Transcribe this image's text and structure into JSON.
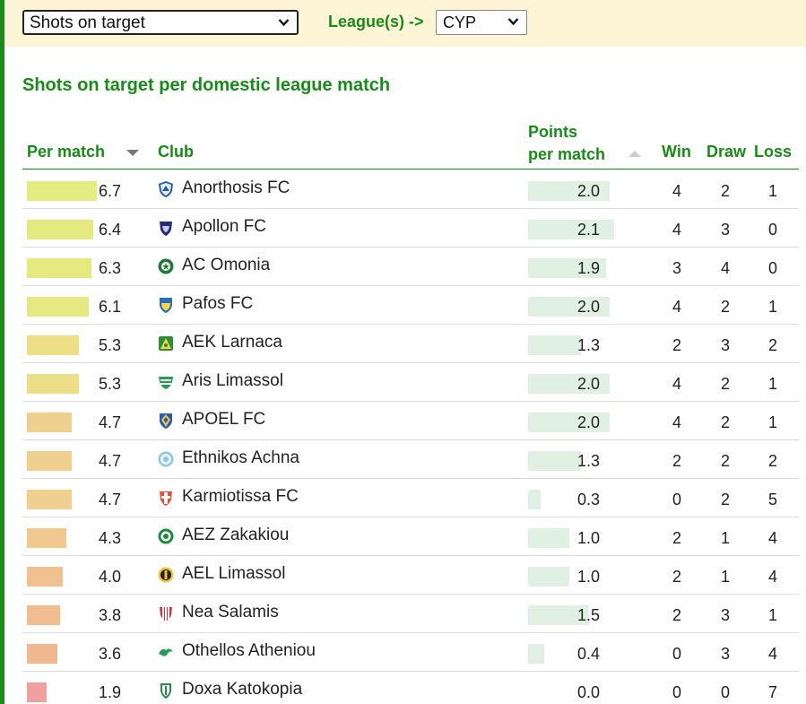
{
  "controls": {
    "stat_select_value": "Shots on target",
    "league_label": "League(s) ->",
    "league_select_value": "CYP"
  },
  "page_title": "Shots on target per domestic league match",
  "columns": {
    "per_match": "Per match",
    "club": "Club",
    "ppm_line1": "Points",
    "ppm_line2": "per match",
    "win": "Win",
    "draw": "Draw",
    "loss": "Loss"
  },
  "colors": {
    "accent_green": "#1a8a1a",
    "topbar_bg": "#fdf5d5",
    "ppm_bar": "#e0f0e2"
  },
  "rows": [
    {
      "per_match": "6.7",
      "club": "Anorthosis FC",
      "ppm": "2.0",
      "win": "4",
      "draw": "2",
      "loss": "1",
      "icon": "anorthosis-crest-icon",
      "pm_color": "#e2ec80"
    },
    {
      "per_match": "6.4",
      "club": "Apollon FC",
      "ppm": "2.1",
      "win": "4",
      "draw": "3",
      "loss": "0",
      "icon": "apollon-crest-icon",
      "pm_color": "#e4ea80"
    },
    {
      "per_match": "6.3",
      "club": "AC Omonia",
      "ppm": "1.9",
      "win": "3",
      "draw": "4",
      "loss": "0",
      "icon": "omonia-crest-icon",
      "pm_color": "#e4ea80"
    },
    {
      "per_match": "6.1",
      "club": "Pafos FC",
      "ppm": "2.0",
      "win": "4",
      "draw": "2",
      "loss": "1",
      "icon": "pafos-crest-icon",
      "pm_color": "#e6e882"
    },
    {
      "per_match": "5.3",
      "club": "AEK Larnaca",
      "ppm": "1.3",
      "win": "2",
      "draw": "3",
      "loss": "2",
      "icon": "aek-larnaca-crest-icon",
      "pm_color": "#ecdf88"
    },
    {
      "per_match": "5.3",
      "club": "Aris Limassol",
      "ppm": "2.0",
      "win": "4",
      "draw": "2",
      "loss": "1",
      "icon": "aris-limassol-crest-icon",
      "pm_color": "#ecdf88"
    },
    {
      "per_match": "4.7",
      "club": "APOEL FC",
      "ppm": "2.0",
      "win": "4",
      "draw": "2",
      "loss": "1",
      "icon": "apoel-crest-icon",
      "pm_color": "#efd090"
    },
    {
      "per_match": "4.7",
      "club": "Ethnikos Achna",
      "ppm": "1.3",
      "win": "2",
      "draw": "2",
      "loss": "2",
      "icon": "ethnikos-achna-crest-icon",
      "pm_color": "#efd090"
    },
    {
      "per_match": "4.7",
      "club": "Karmiotissa FC",
      "ppm": "0.3",
      "win": "0",
      "draw": "2",
      "loss": "5",
      "icon": "karmiotissa-crest-icon",
      "pm_color": "#efd090"
    },
    {
      "per_match": "4.3",
      "club": "AEZ Zakakiou",
      "ppm": "1.0",
      "win": "2",
      "draw": "1",
      "loss": "4",
      "icon": "aez-zakakiou-crest-icon",
      "pm_color": "#f0c890"
    },
    {
      "per_match": "4.0",
      "club": "AEL Limassol",
      "ppm": "1.0",
      "win": "2",
      "draw": "1",
      "loss": "4",
      "icon": "ael-limassol-crest-icon",
      "pm_color": "#f0c090"
    },
    {
      "per_match": "3.8",
      "club": "Nea Salamis",
      "ppm": "1.5",
      "win": "2",
      "draw": "3",
      "loss": "1",
      "icon": "nea-salamis-crest-icon",
      "pm_color": "#f0bc90"
    },
    {
      "per_match": "3.6",
      "club": "Othellos Atheniou",
      "ppm": "0.4",
      "win": "0",
      "draw": "3",
      "loss": "4",
      "icon": "othellos-crest-icon",
      "pm_color": "#f0b890"
    },
    {
      "per_match": "1.9",
      "club": "Doxa Katokopia",
      "ppm": "0.0",
      "win": "0",
      "draw": "0",
      "loss": "7",
      "icon": "doxa-crest-icon",
      "pm_color": "#f0a0a0"
    }
  ]
}
